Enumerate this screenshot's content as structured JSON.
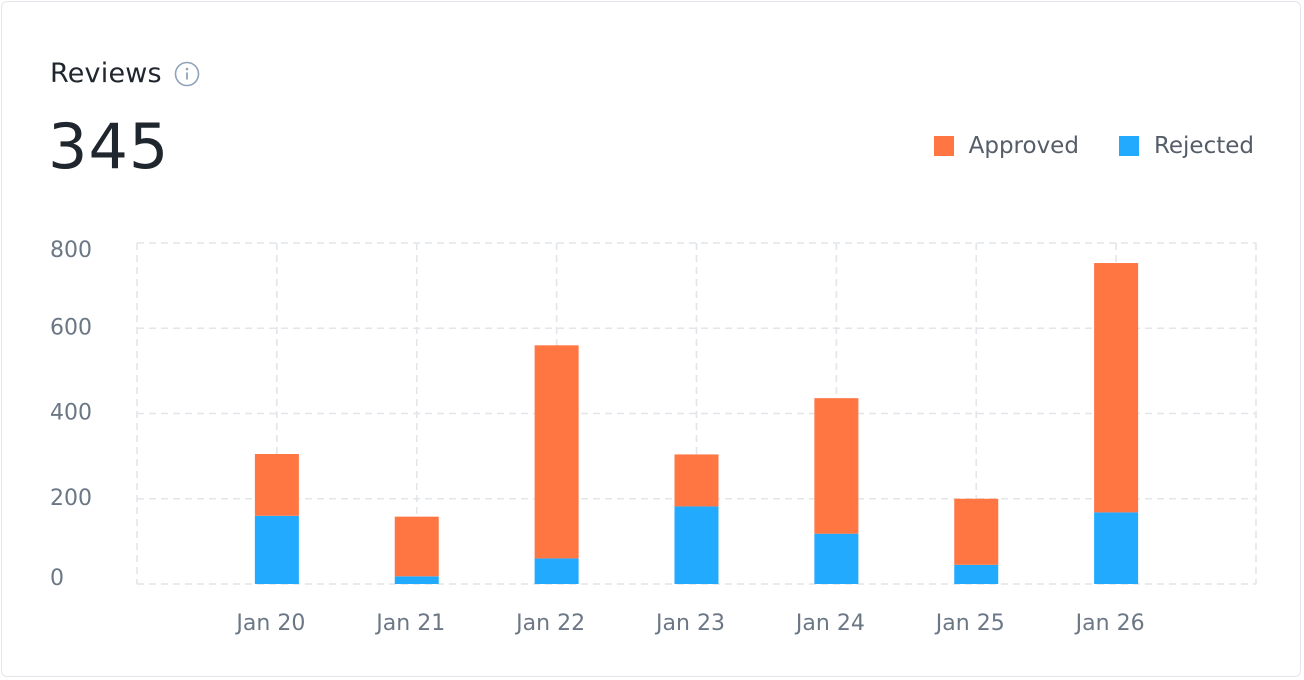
{
  "card": {
    "title": "Reviews",
    "total": "345",
    "info_icon": "info-icon"
  },
  "colors": {
    "approved": "#ff7643",
    "rejected": "#22aaff",
    "grid": "#e2e5e9",
    "tick": "#6b7785",
    "title": "#20262e"
  },
  "chart_data": {
    "type": "bar",
    "stacked": true,
    "categories": [
      "Jan 20",
      "Jan 21",
      "Jan 22",
      "Jan 23",
      "Jan 24",
      "Jan 25",
      "Jan 26"
    ],
    "series": [
      {
        "name": "Rejected",
        "color": "#22aaff",
        "values": [
          160,
          18,
          60,
          182,
          118,
          45,
          168
        ]
      },
      {
        "name": "Approved",
        "color": "#ff7643",
        "values": [
          145,
          140,
          500,
          122,
          318,
          155,
          585
        ]
      }
    ],
    "yticks": [
      "800",
      "600",
      "400",
      "200",
      "0"
    ],
    "ylim": [
      0,
      800
    ],
    "grid": true,
    "legend_position": "top-right"
  }
}
